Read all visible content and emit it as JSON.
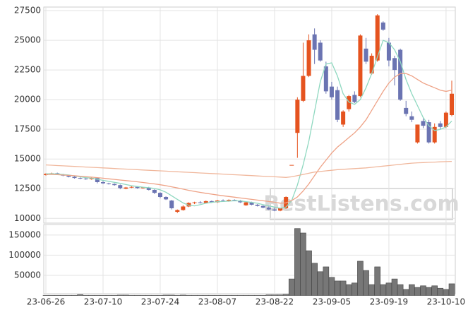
{
  "chart_data": {
    "type": "candlestick",
    "categories": [
      "23-06-26",
      null,
      null,
      null,
      null,
      null,
      null,
      null,
      null,
      null,
      "23-07-10",
      null,
      null,
      null,
      null,
      null,
      null,
      null,
      null,
      null,
      "23-07-24",
      null,
      null,
      null,
      null,
      null,
      null,
      null,
      null,
      null,
      "23-08-07",
      null,
      null,
      null,
      null,
      null,
      null,
      null,
      null,
      null,
      "23-08-22",
      null,
      null,
      null,
      null,
      null,
      null,
      null,
      null,
      null,
      "23-09-05",
      null,
      null,
      null,
      null,
      null,
      null,
      null,
      null,
      null,
      "23-09-19",
      null,
      null,
      null,
      null,
      null,
      null,
      null,
      null,
      null,
      "23-10-10",
      null
    ],
    "open": [
      13650,
      13750,
      13800,
      13700,
      13600,
      13500,
      13400,
      13350,
      13300,
      13400,
      13050,
      12950,
      12900,
      12800,
      12500,
      12600,
      12650,
      12550,
      12600,
      12400,
      12150,
      11800,
      11500,
      10550,
      10700,
      11000,
      11300,
      11350,
      11300,
      11450,
      11350,
      11500,
      11450,
      11550,
      11500,
      11100,
      11350,
      11150,
      11050,
      10900,
      10750,
      10650,
      10850,
      14500,
      17200,
      19900,
      22000,
      25500,
      24800,
      22800,
      21100,
      20800,
      17900,
      19200,
      20400,
      20300,
      24300,
      22200,
      23300,
      26500,
      24800,
      23500,
      24200,
      19300,
      18600,
      16400,
      18200,
      18100,
      16400,
      18000,
      17700,
      18700
    ],
    "high": [
      13800,
      13850,
      13850,
      13750,
      13650,
      13550,
      13450,
      13400,
      13450,
      13450,
      13150,
      13000,
      12950,
      12850,
      12650,
      12700,
      12700,
      12650,
      12650,
      12450,
      12200,
      11850,
      11550,
      10750,
      11100,
      11350,
      11400,
      11450,
      11500,
      11500,
      11550,
      11600,
      11600,
      11600,
      11550,
      11400,
      11400,
      11200,
      11100,
      11000,
      10900,
      10900,
      11850,
      14500,
      20200,
      24800,
      25500,
      26000,
      25000,
      23200,
      21500,
      21100,
      19100,
      20400,
      20700,
      25500,
      25200,
      23900,
      27200,
      26600,
      25200,
      23700,
      24300,
      19900,
      19000,
      17900,
      18400,
      18300,
      18000,
      18200,
      19000,
      21600
    ],
    "low": [
      13600,
      13700,
      13650,
      13550,
      13450,
      13350,
      13300,
      13250,
      13250,
      12950,
      12900,
      12850,
      12750,
      12450,
      12450,
      12550,
      12500,
      12500,
      12350,
      12050,
      11700,
      11550,
      10750,
      10450,
      10650,
      10950,
      11200,
      11250,
      11250,
      11300,
      11300,
      11400,
      11400,
      11450,
      11300,
      11050,
      11100,
      11000,
      10850,
      10700,
      10600,
      10600,
      10800,
      14500,
      15100,
      19800,
      21900,
      23000,
      23200,
      20500,
      20000,
      18100,
      17700,
      19000,
      19700,
      20200,
      23000,
      22100,
      23200,
      25800,
      22800,
      21200,
      19900,
      18600,
      18100,
      16300,
      17600,
      16300,
      16300,
      17500,
      17600,
      18600
    ],
    "close": [
      13750,
      13800,
      13700,
      13600,
      13500,
      13400,
      13350,
      13300,
      13400,
      13050,
      12950,
      12900,
      12800,
      12550,
      12600,
      12650,
      12550,
      12600,
      12400,
      12150,
      11800,
      11600,
      10850,
      10700,
      11000,
      11300,
      11350,
      11300,
      11450,
      11350,
      11500,
      11450,
      11550,
      11500,
      11350,
      11350,
      11150,
      11050,
      10900,
      10750,
      10650,
      10850,
      11800,
      14500,
      20000,
      22000,
      25000,
      24200,
      23300,
      20700,
      20200,
      18300,
      19000,
      20300,
      19800,
      25400,
      23200,
      23700,
      27100,
      25900,
      23300,
      22500,
      20000,
      18800,
      18300,
      17900,
      17800,
      16400,
      17700,
      17700,
      18900,
      20500
    ],
    "up_color": "#e5531f",
    "down_color": "#6b74b2",
    "lines": [
      {
        "color": "#8fd8c0",
        "values": [
          13750,
          13760,
          13740,
          13700,
          13650,
          13580,
          13500,
          13430,
          13380,
          13300,
          13200,
          13120,
          13030,
          12950,
          12850,
          12750,
          12680,
          12620,
          12580,
          12520,
          12400,
          12200,
          11900,
          11600,
          11300,
          11100,
          11050,
          11150,
          11280,
          11350,
          11400,
          11420,
          11450,
          11480,
          11470,
          11400,
          11350,
          11270,
          11150,
          11050,
          10950,
          10850,
          10950,
          11500,
          12800,
          14500,
          16500,
          19000,
          21500,
          23000,
          23100,
          22000,
          20500,
          19800,
          19600,
          20000,
          21000,
          22200,
          23600,
          25000,
          24800,
          24200,
          23200,
          21700,
          20500,
          19500,
          18500,
          17800,
          17400,
          17500,
          17700,
          18200
        ]
      },
      {
        "color": "#eea286",
        "values": [
          13700,
          13700,
          13680,
          13650,
          13620,
          13590,
          13550,
          13510,
          13470,
          13430,
          13380,
          13330,
          13280,
          13230,
          13180,
          13130,
          13080,
          13020,
          12960,
          12900,
          12830,
          12750,
          12660,
          12560,
          12460,
          12360,
          12270,
          12190,
          12110,
          12040,
          11970,
          11900,
          11840,
          11780,
          11720,
          11660,
          11600,
          11540,
          11480,
          11420,
          11360,
          11280,
          11300,
          11500,
          11800,
          12300,
          12900,
          13600,
          14300,
          14900,
          15500,
          16000,
          16400,
          16800,
          17200,
          17700,
          18300,
          19100,
          19900,
          20700,
          21400,
          21900,
          22200,
          22200,
          22000,
          21700,
          21400,
          21200,
          21000,
          20800,
          20700,
          20800
        ]
      },
      {
        "color": "#f0b79c",
        "values": [
          14500,
          14475,
          14450,
          14425,
          14400,
          14375,
          14350,
          14325,
          14300,
          14275,
          14250,
          14225,
          14200,
          14175,
          14150,
          14125,
          14100,
          14075,
          14050,
          14025,
          14000,
          13975,
          13950,
          13925,
          13900,
          13875,
          13850,
          13825,
          13800,
          13775,
          13750,
          13725,
          13700,
          13675,
          13650,
          13625,
          13600,
          13575,
          13550,
          13525,
          13500,
          13475,
          13450,
          13500,
          13600,
          13700,
          13800,
          13900,
          13950,
          14000,
          14050,
          14100,
          14130,
          14160,
          14190,
          14220,
          14250,
          14300,
          14350,
          14400,
          14450,
          14500,
          14550,
          14600,
          14650,
          14680,
          14700,
          14720,
          14740,
          14760,
          14780,
          14800
        ]
      }
    ],
    "ylim": [
      9600,
      27800
    ],
    "yticks": [
      10000,
      12500,
      15000,
      17500,
      20000,
      22500,
      25000,
      27500
    ],
    "grid": true,
    "watermark": "BestListens.com",
    "volume": {
      "type": "bar",
      "color": "#777777",
      "values": [
        500,
        500,
        500,
        500,
        500,
        500,
        2000,
        500,
        500,
        500,
        500,
        500,
        500,
        1000,
        1000,
        500,
        500,
        500,
        500,
        500,
        500,
        1000,
        1000,
        500,
        1000,
        500,
        500,
        500,
        500,
        500,
        500,
        500,
        500,
        500,
        500,
        500,
        500,
        500,
        500,
        1500,
        1500,
        1500,
        2500,
        41000,
        166000,
        155000,
        111000,
        80000,
        59000,
        71000,
        45000,
        36000,
        36000,
        27000,
        31000,
        85000,
        62000,
        27000,
        71000,
        27000,
        31000,
        41000,
        27000,
        15000,
        27000,
        20000,
        24000,
        20000,
        24000,
        18000,
        15000,
        29000
      ],
      "ylim": [
        0,
        176000
      ],
      "yticks": [
        50000,
        100000,
        150000
      ]
    }
  }
}
